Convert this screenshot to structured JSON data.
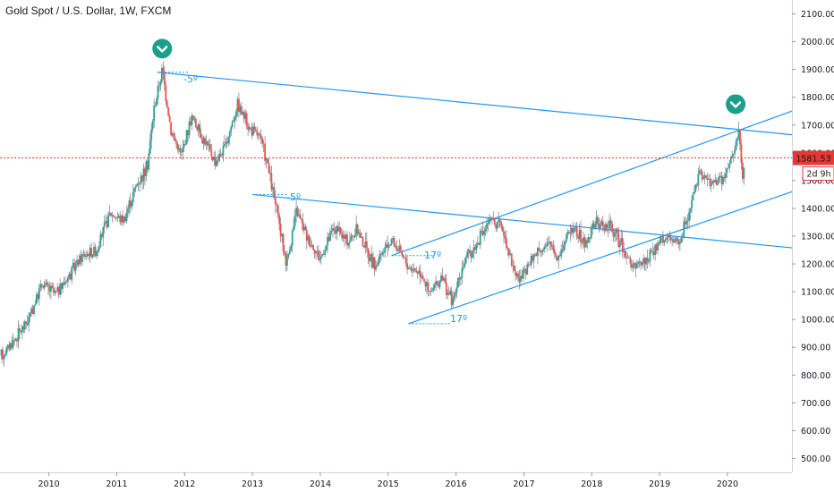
{
  "header": {
    "title": "Gold Spot / U.S. Dollar, 1W, FXCM"
  },
  "price_axis": {
    "tick_labels": [
      "2100.00",
      "2000.00",
      "1900.00",
      "1800.00",
      "1700.00",
      "1600.00",
      "1500.00",
      "1400.00",
      "1300.00",
      "1200.00",
      "1100.00",
      "1000.00",
      "900.00",
      "800.00",
      "700.00",
      "600.00",
      "500.00"
    ],
    "last_price_label": "1581.53",
    "countdown_label": "2d 9h"
  },
  "time_axis": {
    "tick_labels": [
      "2010",
      "2011",
      "2012",
      "2013",
      "2014",
      "2015",
      "2016",
      "2017",
      "2018",
      "2019",
      "2020"
    ]
  },
  "annotations": {
    "angle_labels": [
      "-5º",
      "-5º",
      "17º",
      "17º"
    ]
  },
  "colors": {
    "up": "#26a69a",
    "down": "#ef5350",
    "trendline": "#2196f3",
    "last_price": "#e53935",
    "marker": "#1b9e8a"
  },
  "chart_data": {
    "type": "candlestick",
    "title": "Gold Spot / U.S. Dollar, 1W, FXCM",
    "ylim": [
      450,
      2150
    ],
    "x_range": [
      2009.28,
      2020.95
    ],
    "last_price": 1581.53,
    "price_points": [
      {
        "t": 2009.3,
        "p": 870
      },
      {
        "t": 2009.5,
        "p": 930
      },
      {
        "t": 2009.7,
        "p": 1000
      },
      {
        "t": 2009.9,
        "p": 1130
      },
      {
        "t": 2010.1,
        "p": 1090
      },
      {
        "t": 2010.3,
        "p": 1160
      },
      {
        "t": 2010.5,
        "p": 1230
      },
      {
        "t": 2010.7,
        "p": 1250
      },
      {
        "t": 2010.9,
        "p": 1380
      },
      {
        "t": 2011.1,
        "p": 1360
      },
      {
        "t": 2011.3,
        "p": 1490
      },
      {
        "t": 2011.45,
        "p": 1550
      },
      {
        "t": 2011.55,
        "p": 1760
      },
      {
        "t": 2011.67,
        "p": 1900
      },
      {
        "t": 2011.8,
        "p": 1680
      },
      {
        "t": 2011.95,
        "p": 1590
      },
      {
        "t": 2012.1,
        "p": 1730
      },
      {
        "t": 2012.3,
        "p": 1640
      },
      {
        "t": 2012.45,
        "p": 1570
      },
      {
        "t": 2012.6,
        "p": 1620
      },
      {
        "t": 2012.78,
        "p": 1780
      },
      {
        "t": 2012.95,
        "p": 1690
      },
      {
        "t": 2013.1,
        "p": 1660
      },
      {
        "t": 2013.2,
        "p": 1580
      },
      {
        "t": 2013.35,
        "p": 1400
      },
      {
        "t": 2013.5,
        "p": 1200
      },
      {
        "t": 2013.65,
        "p": 1390
      },
      {
        "t": 2013.8,
        "p": 1300
      },
      {
        "t": 2014.0,
        "p": 1220
      },
      {
        "t": 2014.2,
        "p": 1330
      },
      {
        "t": 2014.4,
        "p": 1280
      },
      {
        "t": 2014.55,
        "p": 1320
      },
      {
        "t": 2014.8,
        "p": 1190
      },
      {
        "t": 2015.05,
        "p": 1290
      },
      {
        "t": 2015.3,
        "p": 1190
      },
      {
        "t": 2015.5,
        "p": 1170
      },
      {
        "t": 2015.6,
        "p": 1090
      },
      {
        "t": 2015.8,
        "p": 1150
      },
      {
        "t": 2015.95,
        "p": 1060
      },
      {
        "t": 2016.1,
        "p": 1200
      },
      {
        "t": 2016.3,
        "p": 1270
      },
      {
        "t": 2016.5,
        "p": 1360
      },
      {
        "t": 2016.7,
        "p": 1320
      },
      {
        "t": 2016.85,
        "p": 1180
      },
      {
        "t": 2016.95,
        "p": 1140
      },
      {
        "t": 2017.2,
        "p": 1250
      },
      {
        "t": 2017.4,
        "p": 1270
      },
      {
        "t": 2017.5,
        "p": 1220
      },
      {
        "t": 2017.7,
        "p": 1340
      },
      {
        "t": 2017.9,
        "p": 1270
      },
      {
        "t": 2018.05,
        "p": 1350
      },
      {
        "t": 2018.3,
        "p": 1330
      },
      {
        "t": 2018.45,
        "p": 1260
      },
      {
        "t": 2018.62,
        "p": 1180
      },
      {
        "t": 2018.85,
        "p": 1230
      },
      {
        "t": 2019.05,
        "p": 1290
      },
      {
        "t": 2019.3,
        "p": 1280
      },
      {
        "t": 2019.45,
        "p": 1410
      },
      {
        "t": 2019.6,
        "p": 1530
      },
      {
        "t": 2019.75,
        "p": 1490
      },
      {
        "t": 2019.95,
        "p": 1510
      },
      {
        "t": 2020.1,
        "p": 1600
      },
      {
        "t": 2020.17,
        "p": 1690
      },
      {
        "t": 2020.22,
        "p": 1500
      },
      {
        "t": 2020.25,
        "p": 1581
      }
    ],
    "trendlines": [
      {
        "t1": 2011.6,
        "p1": 1890,
        "t2": 2020.95,
        "p2": 1665
      },
      {
        "t1": 2013.0,
        "p1": 1450,
        "t2": 2020.95,
        "p2": 1258
      },
      {
        "t1": 2015.3,
        "p1": 985,
        "t2": 2020.95,
        "p2": 1460
      },
      {
        "t1": 2015.05,
        "p1": 1230,
        "t2": 2020.95,
        "p2": 1750
      }
    ],
    "markers": [
      {
        "t": 2011.67,
        "p": 1975
      },
      {
        "t": 2020.12,
        "p": 1775
      }
    ]
  }
}
